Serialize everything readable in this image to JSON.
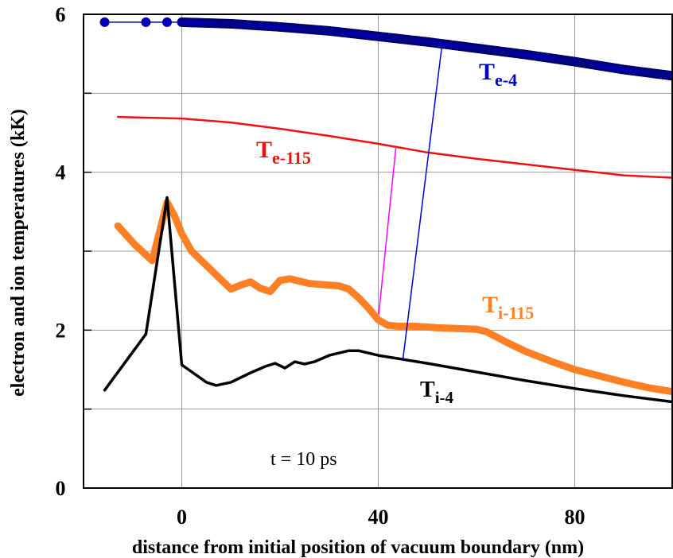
{
  "chart_data": {
    "type": "line",
    "title": "",
    "xlabel": "distance from initial position of vacuum boundary (nm)",
    "ylabel": "electron and ion temperatures (kK)",
    "xlim": [
      -20,
      100
    ],
    "ylim": [
      0,
      6
    ],
    "xticks": [
      0,
      40,
      80
    ],
    "yticks": [
      0,
      2,
      4,
      6
    ],
    "grid": true,
    "annotation": "t = 10 ps",
    "series": [
      {
        "name": "Te-4",
        "label_main": "T",
        "label_sub": "e-4",
        "color": "#0000cc",
        "style": "markers",
        "x": [
          -15.7,
          -7.3,
          -3,
          0,
          10,
          20,
          30,
          40,
          50,
          60,
          70,
          80,
          90,
          100
        ],
        "y": [
          5.9,
          5.9,
          5.9,
          5.9,
          5.88,
          5.84,
          5.79,
          5.72,
          5.65,
          5.57,
          5.49,
          5.4,
          5.3,
          5.22
        ]
      },
      {
        "name": "Te-115",
        "label_main": "T",
        "label_sub": "e-115",
        "color": "#ee1111",
        "style": "line",
        "x": [
          -13,
          0,
          10,
          20,
          30,
          40,
          50,
          60,
          70,
          80,
          90,
          100
        ],
        "y": [
          4.7,
          4.68,
          4.63,
          4.55,
          4.46,
          4.36,
          4.25,
          4.17,
          4.1,
          4.03,
          3.96,
          3.93
        ]
      },
      {
        "name": "Ti-115",
        "label_main": "T",
        "label_sub": "i-115",
        "color": "#ff7f24",
        "style": "thick",
        "x": [
          -13,
          -9.5,
          -6,
          -3,
          -1.5,
          0,
          2,
          5,
          8,
          10,
          12,
          14,
          16,
          18,
          20,
          22,
          24,
          26,
          28,
          30,
          32,
          34,
          36,
          38,
          40,
          42,
          44,
          47,
          50,
          52,
          56,
          60,
          62,
          66,
          70,
          75,
          80,
          85,
          90,
          95,
          100
        ],
        "y": [
          3.32,
          3.08,
          2.88,
          3.62,
          3.45,
          3.22,
          3.0,
          2.82,
          2.64,
          2.52,
          2.57,
          2.61,
          2.53,
          2.49,
          2.63,
          2.65,
          2.62,
          2.59,
          2.58,
          2.57,
          2.56,
          2.52,
          2.41,
          2.28,
          2.13,
          2.06,
          2.05,
          2.05,
          2.04,
          2.03,
          2.02,
          2.01,
          1.98,
          1.85,
          1.73,
          1.61,
          1.5,
          1.42,
          1.34,
          1.27,
          1.22
        ]
      },
      {
        "name": "Ti-4",
        "label_main": "T",
        "label_sub": "i-4",
        "color": "#000000",
        "style": "line",
        "x": [
          -15.7,
          -7.3,
          -3,
          0,
          5,
          7,
          10,
          14,
          17,
          19,
          21,
          23,
          25,
          27,
          30,
          34,
          36,
          40,
          50,
          60,
          70,
          80,
          90,
          100
        ],
        "y": [
          1.24,
          1.95,
          3.68,
          1.56,
          1.34,
          1.3,
          1.34,
          1.46,
          1.54,
          1.58,
          1.52,
          1.6,
          1.57,
          1.6,
          1.68,
          1.74,
          1.74,
          1.68,
          1.58,
          1.47,
          1.36,
          1.26,
          1.17,
          1.09
        ]
      }
    ],
    "connectors": [
      {
        "color": "#0000cc",
        "x": [
          45,
          53
        ],
        "y": [
          1.62,
          5.62
        ]
      },
      {
        "color": "#ff00ff",
        "x": [
          40.1,
          43.6
        ],
        "y": [
          2.2,
          4.32
        ]
      }
    ]
  }
}
